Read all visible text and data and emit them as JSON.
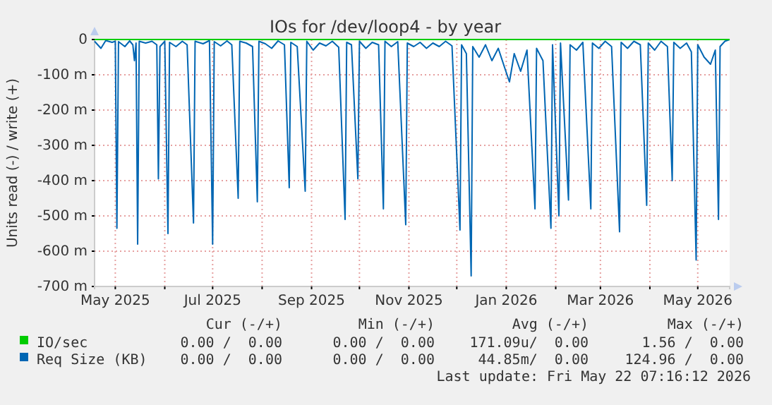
{
  "chart_data": {
    "type": "line",
    "title": "IOs for /dev/loop4 - by year",
    "ylabel": "Units read (-) / write (+)",
    "xlim": [
      "2025-04-18",
      "2026-05-21"
    ],
    "xticks": [
      {
        "value": "2025-05-01",
        "label": "May 2025"
      },
      {
        "value": "2025-06-01",
        "label": null
      },
      {
        "value": "2025-07-01",
        "label": "Jul 2025"
      },
      {
        "value": "2025-08-01",
        "label": null
      },
      {
        "value": "2025-09-01",
        "label": "Sep 2025"
      },
      {
        "value": "2025-10-01",
        "label": null
      },
      {
        "value": "2025-11-01",
        "label": "Nov 2025"
      },
      {
        "value": "2025-12-01",
        "label": null
      },
      {
        "value": "2026-01-01",
        "label": "Jan 2026"
      },
      {
        "value": "2026-02-01",
        "label": null
      },
      {
        "value": "2026-03-01",
        "label": "Mar 2026"
      },
      {
        "value": "2026-04-01",
        "label": null
      },
      {
        "value": "2026-05-01",
        "label": "May 2026"
      }
    ],
    "ylim": [
      -700,
      0
    ],
    "yticks": [
      0,
      {
        "value": -100,
        "label": "-100 m"
      },
      {
        "value": -200,
        "label": "-200 m"
      },
      {
        "value": -300,
        "label": "-300 m"
      },
      {
        "value": -400,
        "label": "-400 m"
      },
      {
        "value": -500,
        "label": "-500 m"
      },
      {
        "value": -600,
        "label": "-600 m"
      },
      {
        "value": -700,
        "label": "-700 m"
      }
    ],
    "grid": true,
    "legend": "bottom",
    "series": [
      {
        "name": "IO/sec",
        "color": "#00cc00",
        "x": [
          "2025-04-18",
          "2026-05-21"
        ],
        "values": [
          0,
          0
        ]
      },
      {
        "name": "Req Size (KB)",
        "color": "#0066b3",
        "x": [
          "2025-04-18",
          "2025-04-22",
          "2025-04-25",
          "2025-04-29",
          "2025-05-01",
          "2025-05-02",
          "2025-05-03",
          "2025-05-07",
          "2025-05-10",
          "2025-05-12",
          "2025-05-13",
          "2025-05-14",
          "2025-05-15",
          "2025-05-16",
          "2025-05-20",
          "2025-05-24",
          "2025-05-27",
          "2025-05-28",
          "2025-05-29",
          "2025-06-01",
          "2025-06-03",
          "2025-06-04",
          "2025-06-08",
          "2025-06-12",
          "2025-06-15",
          "2025-06-19",
          "2025-06-20",
          "2025-06-25",
          "2025-06-29",
          "2025-07-01",
          "2025-07-02",
          "2025-07-06",
          "2025-07-10",
          "2025-07-13",
          "2025-07-17",
          "2025-07-18",
          "2025-07-22",
          "2025-07-26",
          "2025-07-29",
          "2025-07-30",
          "2025-08-03",
          "2025-08-07",
          "2025-08-11",
          "2025-08-15",
          "2025-08-18",
          "2025-08-19",
          "2025-08-23",
          "2025-08-28",
          "2025-08-29",
          "2025-09-02",
          "2025-09-06",
          "2025-09-10",
          "2025-09-14",
          "2025-09-18",
          "2025-09-22",
          "2025-09-23",
          "2025-09-26",
          "2025-09-30",
          "2025-10-01",
          "2025-10-05",
          "2025-10-09",
          "2025-10-13",
          "2025-10-16",
          "2025-10-17",
          "2025-10-21",
          "2025-10-25",
          "2025-10-30",
          "2025-10-31",
          "2025-11-04",
          "2025-11-08",
          "2025-11-12",
          "2025-11-16",
          "2025-11-20",
          "2025-11-24",
          "2025-11-28",
          "2025-12-03",
          "2025-12-04",
          "2025-12-07",
          "2025-12-10",
          "2025-12-11",
          "2025-12-15",
          "2025-12-19",
          "2025-12-23",
          "2025-12-27",
          "2025-12-31",
          "2026-01-03",
          "2026-01-06",
          "2026-01-10",
          "2026-01-14",
          "2026-01-19",
          "2026-01-20",
          "2026-01-24",
          "2026-01-29",
          "2026-01-30",
          "2026-02-03",
          "2026-02-04",
          "2026-02-09",
          "2026-02-10",
          "2026-02-14",
          "2026-02-18",
          "2026-02-23",
          "2026-02-24",
          "2026-02-28",
          "2026-03-04",
          "2026-03-08",
          "2026-03-13",
          "2026-03-14",
          "2026-03-18",
          "2026-03-22",
          "2026-03-26",
          "2026-03-30",
          "2026-03-31",
          "2026-04-04",
          "2026-04-08",
          "2026-04-12",
          "2026-04-15",
          "2026-04-16",
          "2026-04-20",
          "2026-04-24",
          "2026-04-27",
          "2026-04-30",
          "2026-05-01",
          "2026-05-05",
          "2026-05-09",
          "2026-05-12",
          "2026-05-14",
          "2026-05-15",
          "2026-05-18",
          "2026-05-21"
        ],
        "values": [
          -5,
          -25,
          -3,
          -8,
          -5,
          -535,
          -6,
          -20,
          -4,
          -15,
          -60,
          -10,
          -580,
          -5,
          -10,
          -5,
          -15,
          -395,
          -20,
          -5,
          -550,
          -8,
          -20,
          -5,
          -15,
          -520,
          -5,
          -12,
          -3,
          -580,
          -6,
          -18,
          -4,
          -15,
          -450,
          -5,
          -10,
          -20,
          -460,
          -5,
          -12,
          -25,
          -4,
          -15,
          -420,
          -8,
          -20,
          -430,
          -5,
          -30,
          -10,
          -18,
          -5,
          -22,
          -510,
          -8,
          -15,
          -395,
          -5,
          -25,
          -8,
          -15,
          -480,
          -5,
          -20,
          -6,
          -525,
          -10,
          -20,
          -8,
          -25,
          -10,
          -20,
          -5,
          -18,
          -540,
          -15,
          -40,
          -670,
          -20,
          -50,
          -15,
          -60,
          -25,
          -80,
          -120,
          -40,
          -90,
          -30,
          -480,
          -25,
          -60,
          -535,
          -15,
          -500,
          -10,
          -455,
          -15,
          -30,
          -8,
          -480,
          -10,
          -25,
          -5,
          -20,
          -545,
          -8,
          -25,
          -5,
          -15,
          -470,
          -10,
          -30,
          -5,
          -20,
          -400,
          -8,
          -25,
          -10,
          -35,
          -625,
          -15,
          -50,
          -70,
          -30,
          -510,
          -20,
          -5,
          0
        ]
      }
    ],
    "annotations": [
      "Cur (-/+)",
      "Min (-/+)",
      "Avg (-/+)",
      "Max (-/+)",
      "0.00 /  0.00",
      "0.00 /  0.00",
      "171.09u/  0.00",
      "1.56 /  0.00",
      "0.00 /  0.00",
      "0.00 /  0.00",
      "44.85m/  0.00",
      "124.96 /  0.00",
      "Last update: Fri May 22 07:16:12 2026"
    ]
  }
}
